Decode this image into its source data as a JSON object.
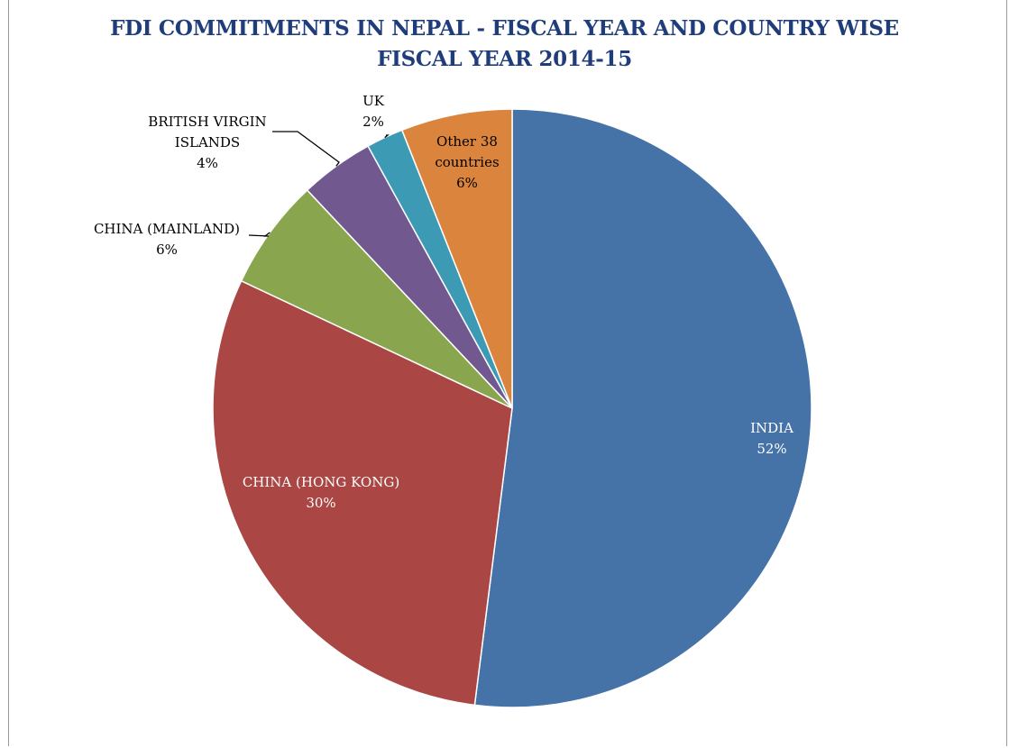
{
  "chart_data": {
    "type": "pie",
    "title": "FDI COMMITMENTS IN NEPAL - FISCAL YEAR AND COUNTRY WISE",
    "subtitle": "FISCAL YEAR 2014-15",
    "slices": [
      {
        "name": "INDIA",
        "value": 52,
        "label": "52%",
        "color": "#4572a7",
        "text_color": "#ffffff"
      },
      {
        "name": "CHINA (HONG KONG)",
        "value": 30,
        "label": "30%",
        "color": "#aa4643",
        "text_color": "#ffffff"
      },
      {
        "name": "CHINA (MAINLAND)",
        "value": 6,
        "label": "6%",
        "color": "#89a54e",
        "text_color": "#000000"
      },
      {
        "name": "BRITISH VIRGIN ISLANDS",
        "value": 4,
        "label": "4%",
        "color": "#71588f",
        "text_color": "#000000"
      },
      {
        "name": "UK",
        "value": 2,
        "label": "2%",
        "color": "#3d9ab5",
        "text_color": "#000000"
      },
      {
        "name": "Other 38 countries",
        "value": 6,
        "label": "6%",
        "color": "#db843d",
        "text_color": "#000000"
      }
    ]
  }
}
